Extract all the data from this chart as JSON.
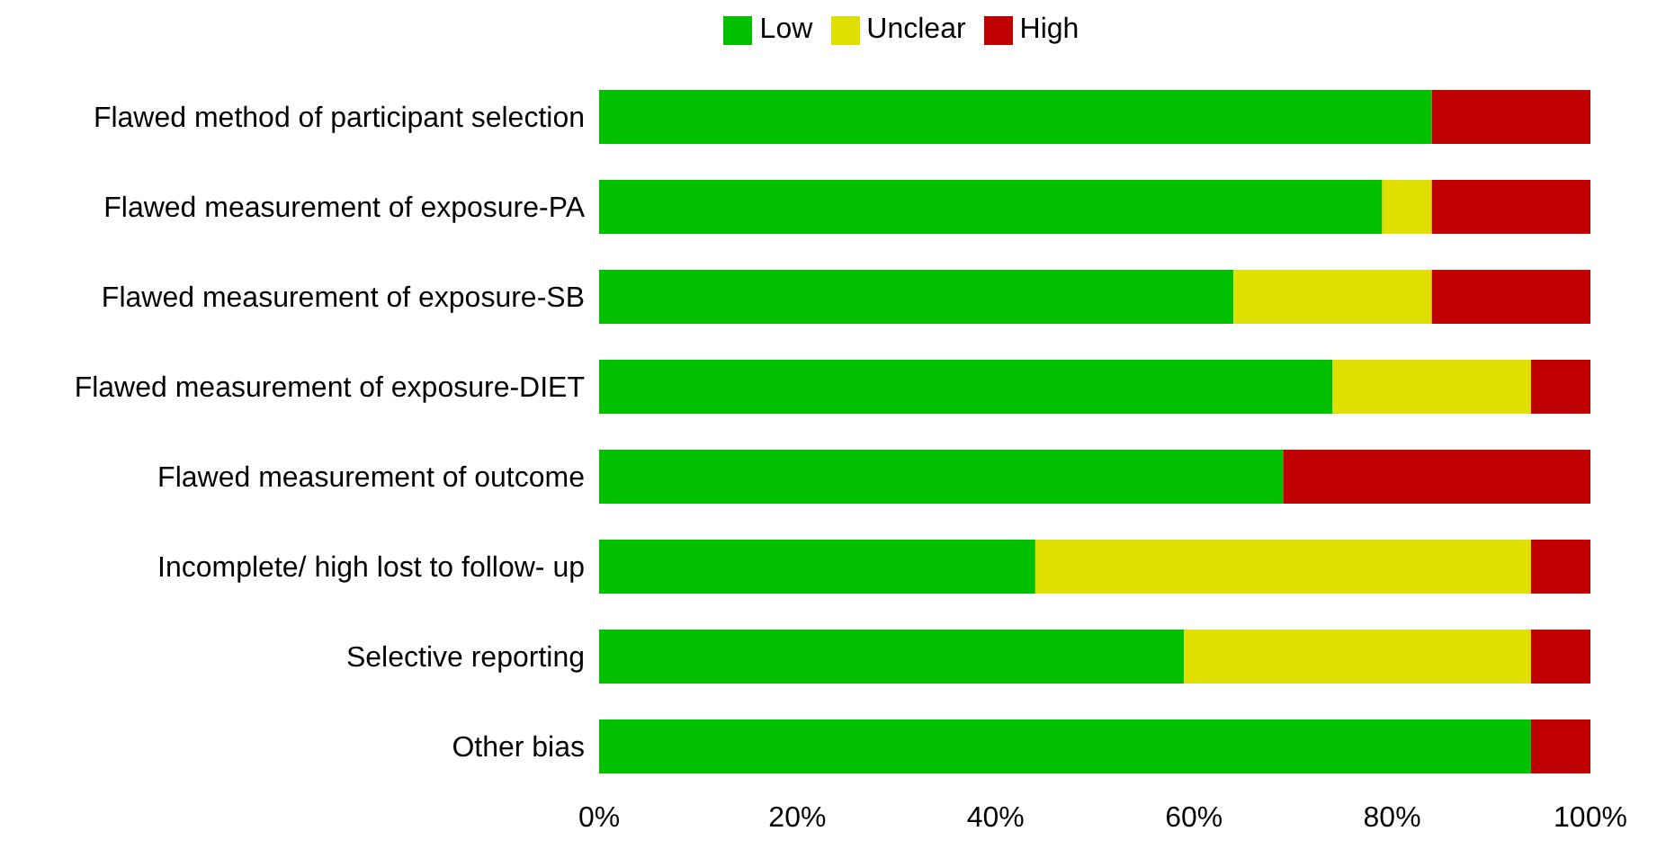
{
  "chart_data": {
    "type": "bar",
    "orientation": "horizontal",
    "stacked": true,
    "legend": "top",
    "categories": [
      "Flawed method of participant selection",
      "Flawed measurement of exposure-PA",
      "Flawed measurement of exposure-SB",
      "Flawed measurement of exposure-DIET",
      "Flawed measurement of outcome",
      "Incomplete/ high lost to follow- up",
      "Selective  reporting",
      "Other bias"
    ],
    "series": [
      {
        "name": "Low",
        "color": "#00c000",
        "values": [
          84,
          79,
          64,
          74,
          69,
          44,
          59,
          94
        ]
      },
      {
        "name": "Unclear",
        "color": "#e0e000",
        "values": [
          0,
          5,
          20,
          20,
          0,
          50,
          35,
          0
        ]
      },
      {
        "name": "High",
        "color": "#c00000",
        "values": [
          16,
          16,
          16,
          6,
          31,
          6,
          6,
          6
        ]
      }
    ],
    "xlim": [
      0,
      100
    ],
    "xticks": [
      {
        "value": 0,
        "label": "0%"
      },
      {
        "value": 20,
        "label": "20%"
      },
      {
        "value": 40,
        "label": "40%"
      },
      {
        "value": 60,
        "label": "60%"
      },
      {
        "value": 80,
        "label": "80%"
      },
      {
        "value": 100,
        "label": "100%"
      }
    ]
  }
}
